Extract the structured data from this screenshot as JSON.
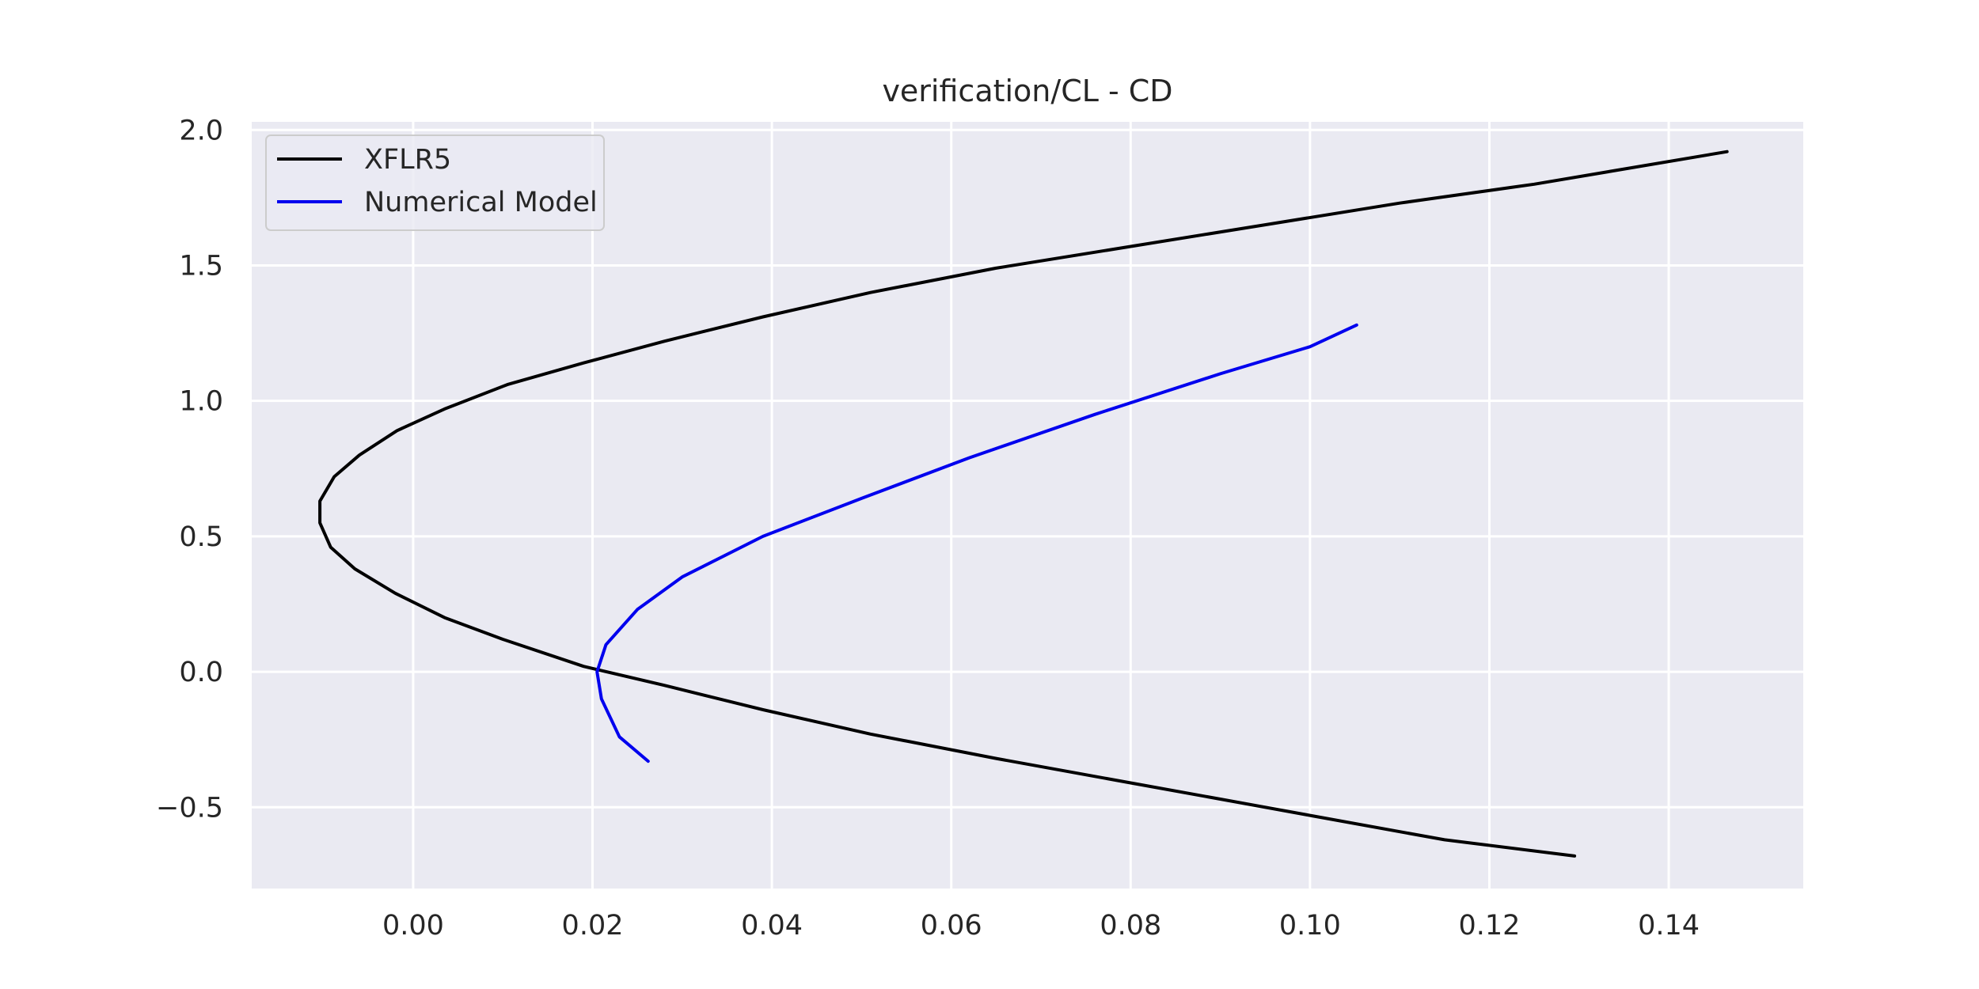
{
  "chart_data": {
    "type": "line",
    "title": "verification/CL - CD",
    "xlabel": "",
    "ylabel": "",
    "xlim": [
      -0.018,
      0.155
    ],
    "ylim": [
      -0.8,
      2.03
    ],
    "x_ticks": [
      0.0,
      0.02,
      0.04,
      0.06,
      0.08,
      0.1,
      0.12,
      0.14
    ],
    "x_tick_labels": [
      "0.00",
      "0.02",
      "0.04",
      "0.06",
      "0.08",
      "0.10",
      "0.12",
      "0.14"
    ],
    "y_ticks": [
      -0.5,
      0.0,
      0.5,
      1.0,
      1.5,
      2.0
    ],
    "y_tick_labels": [
      "−0.5",
      "0.0",
      "0.5",
      "1.0",
      "1.5",
      "2.0"
    ],
    "grid": true,
    "legend_position": "top-left",
    "background_color": "#EAEAF2",
    "grid_color": "#FFFFFF",
    "series": [
      {
        "name": "XFLR5",
        "color": "#000000",
        "points": [
          [
            0.1295,
            -0.68
          ],
          [
            0.115,
            -0.62
          ],
          [
            0.1,
            -0.53
          ],
          [
            0.09,
            -0.47
          ],
          [
            0.08,
            -0.41
          ],
          [
            0.065,
            -0.32
          ],
          [
            0.051,
            -0.23
          ],
          [
            0.039,
            -0.14
          ],
          [
            0.028,
            -0.05
          ],
          [
            0.019,
            0.02
          ],
          [
            0.01,
            0.12
          ],
          [
            0.0035,
            0.2
          ],
          [
            -0.002,
            0.29
          ],
          [
            -0.0065,
            0.38
          ],
          [
            -0.0092,
            0.46
          ],
          [
            -0.0104,
            0.55
          ],
          [
            -0.0104,
            0.63
          ],
          [
            -0.0088,
            0.72
          ],
          [
            -0.006,
            0.8
          ],
          [
            -0.0018,
            0.89
          ],
          [
            0.0035,
            0.97
          ],
          [
            0.0105,
            1.06
          ],
          [
            0.019,
            1.14
          ],
          [
            0.028,
            1.22
          ],
          [
            0.039,
            1.31
          ],
          [
            0.051,
            1.4
          ],
          [
            0.065,
            1.49
          ],
          [
            0.08,
            1.57
          ],
          [
            0.095,
            1.65
          ],
          [
            0.11,
            1.73
          ],
          [
            0.125,
            1.8
          ],
          [
            0.1465,
            1.92
          ]
        ]
      },
      {
        "name": "Numerical Model",
        "color": "#0000EE",
        "points": [
          [
            0.0262,
            -0.33
          ],
          [
            0.023,
            -0.24
          ],
          [
            0.021,
            -0.1
          ],
          [
            0.0205,
            0.0
          ],
          [
            0.0215,
            0.1
          ],
          [
            0.025,
            0.23
          ],
          [
            0.03,
            0.35
          ],
          [
            0.039,
            0.5
          ],
          [
            0.05,
            0.64
          ],
          [
            0.062,
            0.79
          ],
          [
            0.076,
            0.95
          ],
          [
            0.09,
            1.1
          ],
          [
            0.1,
            1.2
          ],
          [
            0.1052,
            1.28
          ]
        ]
      }
    ]
  }
}
